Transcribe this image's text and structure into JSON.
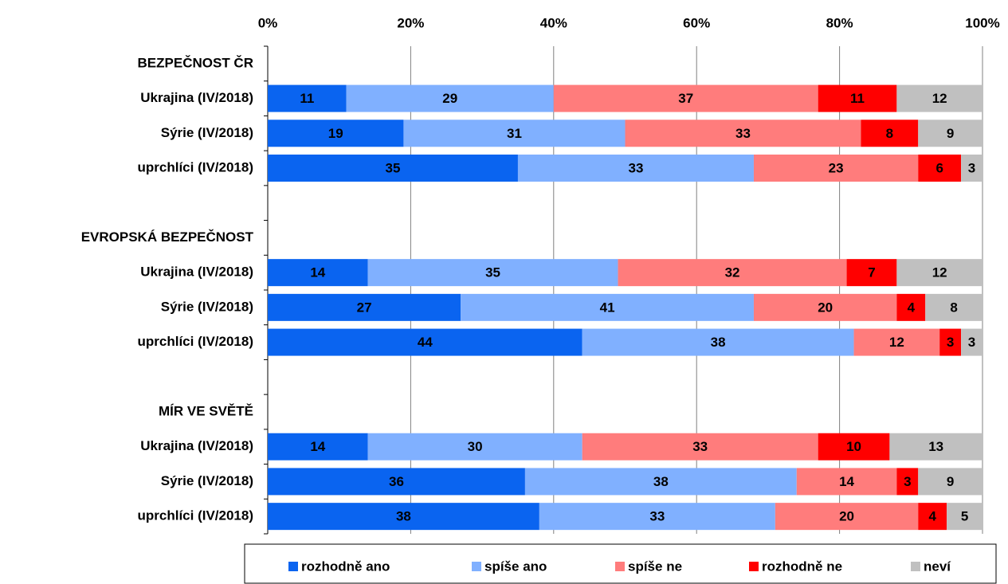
{
  "chart_data": {
    "type": "stacked-bar-horizontal",
    "categories": [
      "BEZPEČNOST  ČR",
      "Ukrajina (IV/2018)",
      "Sýrie (IV/2018)",
      "uprchlíci (IV/2018)",
      null,
      "EVROPSKÁ BEZPEČNOST",
      "Ukrajina (IV/2018)",
      "Sýrie (IV/2018)",
      "uprchlíci (IV/2018)",
      null,
      "MÍR VE SVĚTĚ",
      "Ukrajina (IV/2018)",
      "Sýrie (IV/2018)",
      "uprchlíci (IV/2018)"
    ],
    "series": [
      {
        "name": "rozhodně ano",
        "color": "#0a64f0",
        "values": [
          null,
          11,
          19,
          35,
          null,
          null,
          14,
          27,
          44,
          null,
          null,
          14,
          36,
          38
        ]
      },
      {
        "name": "spíše ano",
        "color": "#80b0ff",
        "values": [
          null,
          29,
          31,
          33,
          null,
          null,
          35,
          41,
          38,
          null,
          null,
          30,
          38,
          33
        ]
      },
      {
        "name": "spíše ne",
        "color": "#ff7c7c",
        "values": [
          null,
          37,
          33,
          23,
          null,
          null,
          32,
          20,
          12,
          null,
          null,
          33,
          14,
          20
        ]
      },
      {
        "name": "rozhodně ne",
        "color": "#ff0000",
        "values": [
          null,
          11,
          8,
          6,
          null,
          null,
          7,
          4,
          3,
          null,
          null,
          10,
          3,
          4
        ]
      },
      {
        "name": "neví",
        "color": "#c0c0c0",
        "values": [
          null,
          12,
          9,
          3,
          null,
          null,
          12,
          8,
          3,
          null,
          null,
          13,
          9,
          5
        ]
      }
    ],
    "xlim": [
      0,
      100
    ],
    "xticks": [
      {
        "value": 0,
        "label": "0%"
      },
      {
        "value": 20,
        "label": "20%"
      },
      {
        "value": 40,
        "label": "40%"
      },
      {
        "value": 60,
        "label": "60%"
      },
      {
        "value": 80,
        "label": "80%"
      },
      {
        "value": 100,
        "label": "100%"
      }
    ],
    "grid": true,
    "legend": "bottom"
  }
}
